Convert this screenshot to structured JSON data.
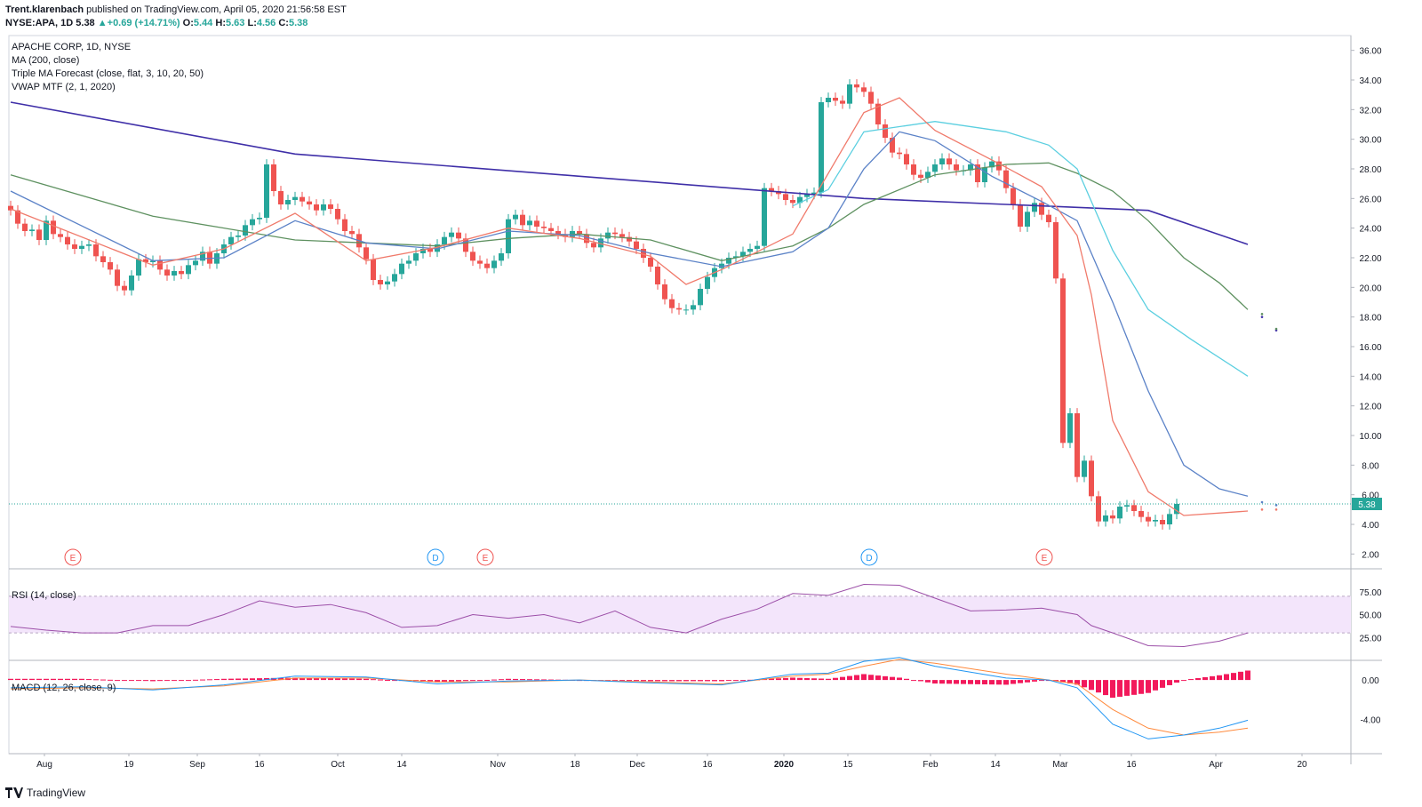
{
  "header": {
    "author": "Trent.klarenbach",
    "published_text": "published on TradingView.com, April 05, 2020 21:56:58 EST",
    "symbol_line": "NYSE:APA, 1D",
    "last": "5.38",
    "change": "+0.69 (+14.71%)",
    "ohlc": [
      {
        "label": "O:",
        "value": "5.44"
      },
      {
        "label": "H:",
        "value": "5.63"
      },
      {
        "label": "L:",
        "value": "4.56"
      },
      {
        "label": "C:",
        "value": "5.38"
      }
    ]
  },
  "legend": {
    "title": "APACHE CORP, 1D, NYSE",
    "ma": "MA (200, close)",
    "triple_ma": "Triple MA Forecast (close, flat, 3, 10, 20, 50)",
    "vwap": "VWAP MTF (2, 1, 2020)"
  },
  "footer": {
    "brand": "TradingView"
  },
  "colors": {
    "up": "#26a69a",
    "down": "#ef5350",
    "ma200": "#3f2fa8",
    "ma3": "#f07a6b",
    "ma10": "#5b82c7",
    "ma20": "#5bcfe0",
    "ma50": "#5e9160",
    "rsi": "#9c4fa8",
    "rsi_band": "#f3e5fb",
    "macd": "#2196f3",
    "signal": "#ff8a3d",
    "hist": "#f2195b",
    "price_label": "#26a69a"
  },
  "chart_data": [
    {
      "type": "candlestick",
      "title": "APACHE CORP, 1D, NYSE",
      "ylim": [
        1,
        37
      ],
      "y_ticks": [
        "36.00",
        "34.00",
        "32.00",
        "30.00",
        "28.00",
        "26.00",
        "24.00",
        "22.00",
        "20.00",
        "18.00",
        "16.00",
        "14.00",
        "12.00",
        "10.00",
        "8.00",
        "6.00",
        "4.00",
        "2.00"
      ],
      "x_tick_labels": [
        "Aug",
        "19",
        "Sep",
        "16",
        "Oct",
        "14",
        "Nov",
        "18",
        "Dec",
        "16",
        "2020",
        "15",
        "Feb",
        "14",
        "Mar",
        "16",
        "Apr",
        "20"
      ],
      "last_price_label": "5.38",
      "candle_closes": [
        25.2,
        24.3,
        23.8,
        23.9,
        23.2,
        24.5,
        23.6,
        23.4,
        22.9,
        22.6,
        22.8,
        22.9,
        22.1,
        21.7,
        21.2,
        20.1,
        19.8,
        20.8,
        21.9,
        21.7,
        21.8,
        21.2,
        20.8,
        21.1,
        20.9,
        21.5,
        21.8,
        22.4,
        21.6,
        22.3,
        22.9,
        23.4,
        23.5,
        24.2,
        24.6,
        24.7,
        28.3,
        26.5,
        25.6,
        25.9,
        26.1,
        25.8,
        25.6,
        25.2,
        25.6,
        25.3,
        24.6,
        23.8,
        23.6,
        22.7,
        21.9,
        20.5,
        20.2,
        20.4,
        20.9,
        21.6,
        21.8,
        22.3,
        22.6,
        22.4,
        22.9,
        23.4,
        23.7,
        23.3,
        22.4,
        21.8,
        21.6,
        21.3,
        21.8,
        22.3,
        24.6,
        24.9,
        24.2,
        24.5,
        24.1,
        24.0,
        23.8,
        23.6,
        23.4,
        23.8,
        23.6,
        23.0,
        22.7,
        23.3,
        23.7,
        23.6,
        23.4,
        23.1,
        22.6,
        22.0,
        21.4,
        20.2,
        19.2,
        18.6,
        18.5,
        18.5,
        18.8,
        19.9,
        20.7,
        21.3,
        21.6,
        22.0,
        22.1,
        22.4,
        22.6,
        22.8,
        26.7,
        26.5,
        26.3,
        25.9,
        25.7,
        26.1,
        26.3,
        26.4,
        32.5,
        32.8,
        32.6,
        32.4,
        33.7,
        33.5,
        33.2,
        32.4,
        31.0,
        30.1,
        29.1,
        29.0,
        28.3,
        27.6,
        27.4,
        27.8,
        28.3,
        28.7,
        28.3,
        27.9,
        27.9,
        28.3,
        27.1,
        28.1,
        28.5,
        27.9,
        26.7,
        25.6,
        24.1,
        25.1,
        25.7,
        24.9,
        24.4,
        20.6,
        9.5,
        11.5,
        7.2,
        8.3,
        5.9,
        4.2,
        4.6,
        4.4,
        5.2,
        5.3,
        4.9,
        4.5,
        4.2,
        4.3,
        4.0,
        4.7,
        5.38
      ],
      "ma200": {
        "x": [
          0,
          40,
          80,
          120,
          160,
          174
        ],
        "values": [
          32.5,
          29.0,
          27.5,
          26.0,
          25.2,
          22.9
        ],
        "forecast": [
          18.0,
          17.1
        ]
      },
      "ma3": {
        "x": [
          0,
          20,
          30,
          40,
          50,
          60,
          70,
          80,
          90,
          95,
          100,
          110,
          120,
          125,
          130,
          140,
          145,
          150,
          152,
          155,
          160,
          165,
          174
        ],
        "values": [
          25.3,
          21.5,
          22.6,
          25.0,
          21.8,
          22.7,
          24.0,
          23.3,
          22.1,
          20.2,
          21.2,
          23.6,
          31.8,
          32.8,
          30.6,
          28.1,
          26.8,
          23.5,
          19.5,
          11.0,
          6.2,
          4.6,
          4.9
        ],
        "forecast": [
          5.0,
          5.0
        ]
      },
      "ma10": {
        "x": [
          0,
          20,
          30,
          40,
          50,
          60,
          70,
          80,
          90,
          100,
          110,
          115,
          120,
          125,
          130,
          138,
          145,
          150,
          155,
          160,
          165,
          170,
          174
        ],
        "values": [
          26.5,
          21.8,
          22.0,
          24.5,
          23.0,
          22.6,
          23.8,
          23.5,
          22.3,
          21.4,
          22.4,
          24.0,
          28.0,
          30.5,
          29.9,
          27.5,
          25.8,
          24.5,
          19.0,
          13.0,
          8.0,
          6.4,
          5.9
        ],
        "forecast": [
          5.5,
          5.3
        ]
      },
      "ma20": {
        "x": [
          110,
          115,
          120,
          130,
          140,
          146,
          150,
          155,
          160,
          166,
          174
        ],
        "values": [
          25.5,
          26.6,
          30.5,
          31.2,
          30.5,
          29.6,
          28.0,
          22.5,
          18.5,
          16.5,
          14.0
        ]
      },
      "ma50": {
        "x": [
          0,
          20,
          40,
          60,
          70,
          80,
          90,
          100,
          110,
          115,
          120,
          130,
          140,
          146,
          150,
          155,
          160,
          165,
          170,
          174
        ],
        "values": [
          27.6,
          24.8,
          23.2,
          22.8,
          23.3,
          23.6,
          23.2,
          21.8,
          22.8,
          24.0,
          25.6,
          27.6,
          28.3,
          28.4,
          27.7,
          26.5,
          24.5,
          22.0,
          20.3,
          18.5
        ],
        "forecast": [
          18.2,
          17.2
        ]
      },
      "event_markers": [
        {
          "label": "E",
          "color": "#ef5350"
        },
        {
          "label": "D",
          "color": "#2196f3"
        },
        {
          "label": "E",
          "color": "#ef5350"
        },
        {
          "label": "D",
          "color": "#2196f3"
        },
        {
          "label": "E",
          "color": "#ef5350"
        }
      ]
    },
    {
      "type": "line",
      "title": "RSI (14, close)",
      "ylim": [
        0,
        100
      ],
      "y_ticks": [
        "75.00",
        "50.00",
        "25.00"
      ],
      "band": [
        30,
        70
      ],
      "x": [
        0,
        5,
        10,
        15,
        20,
        25,
        30,
        35,
        40,
        45,
        50,
        55,
        60,
        65,
        70,
        75,
        80,
        85,
        90,
        95,
        100,
        105,
        110,
        115,
        120,
        125,
        130,
        135,
        140,
        145,
        150,
        152,
        155,
        160,
        165,
        170,
        174
      ],
      "values": [
        37,
        33,
        30,
        30,
        38,
        38,
        50,
        65,
        58,
        61,
        52,
        36,
        38,
        50,
        46,
        50,
        41,
        54,
        36,
        30,
        45,
        56,
        73,
        71,
        83,
        82,
        68,
        54,
        55,
        57,
        50,
        38,
        30,
        16,
        15,
        21,
        30
      ]
    },
    {
      "type": "line",
      "title": "MACD (12, 26, close, 9)",
      "ylim": [
        -7.5,
        2
      ],
      "y_ticks": [
        "0.00",
        "-4.00"
      ],
      "x": [
        0,
        10,
        20,
        30,
        40,
        50,
        60,
        70,
        80,
        90,
        100,
        110,
        115,
        120,
        125,
        130,
        140,
        146,
        150,
        155,
        160,
        165,
        170,
        174
      ],
      "macd": [
        -0.8,
        -0.7,
        -1.0,
        -0.5,
        0.4,
        0.3,
        -0.4,
        -0.1,
        0.0,
        -0.3,
        -0.5,
        0.6,
        0.7,
        1.9,
        2.3,
        1.4,
        0.2,
        0.0,
        -0.8,
        -4.5,
        -6.0,
        -5.6,
        -4.9,
        -4.1
      ],
      "signal": [
        -0.9,
        -0.8,
        -0.9,
        -0.6,
        0.2,
        0.2,
        -0.2,
        -0.2,
        0.0,
        -0.2,
        -0.4,
        0.4,
        0.6,
        1.4,
        2.1,
        1.7,
        0.6,
        0.0,
        -0.4,
        -3.0,
        -4.9,
        -5.6,
        -5.3,
        -4.9
      ]
    }
  ]
}
